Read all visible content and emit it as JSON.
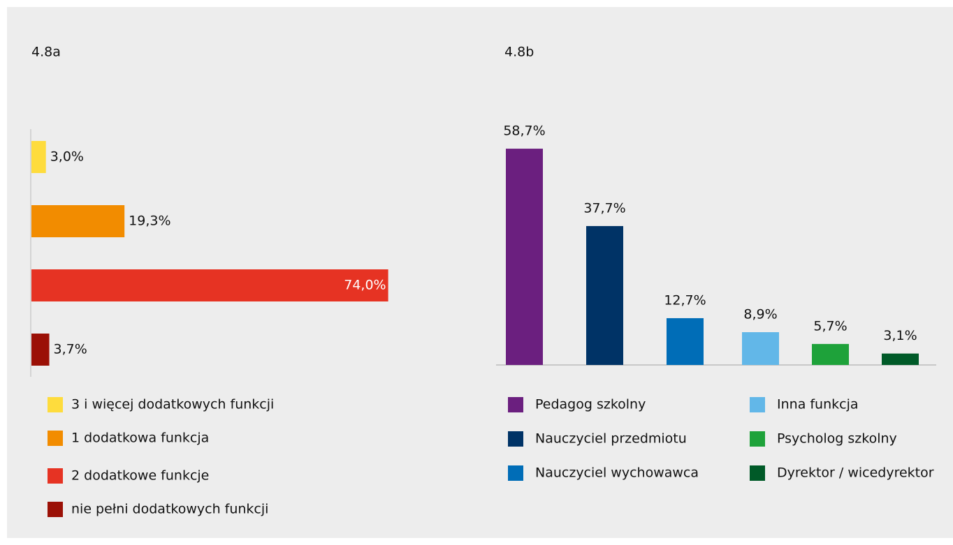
{
  "chart_data": [
    {
      "type": "hbar",
      "title": "4.8a",
      "categories": [
        "3 i więcej dodatkowych funkcji",
        "1 dodatkowa funkcja",
        "2 dodatkowe funkcje",
        "nie pełni dodatkowych funkcji"
      ],
      "values": [
        3.0,
        19.3,
        74.0,
        3.7
      ],
      "value_labels": [
        "3,0%",
        "19,3%",
        "74,0%",
        "3,7%"
      ],
      "colors": [
        "#fedc3d",
        "#f28c00",
        "#e63323",
        "#9b1006"
      ]
    },
    {
      "type": "bar",
      "title": "4.8b",
      "categories": [
        "Pedagog szkolny",
        "Nauczyciel przedmiotu",
        "Nauczyciel wychowawca",
        "Inna funkcja",
        "Psycholog szkolny",
        "Dyrektor / wicedyrektor"
      ],
      "values": [
        58.7,
        37.7,
        12.7,
        8.9,
        5.7,
        3.1
      ],
      "value_labels": [
        "58,7%",
        "37,7%",
        "12,7%",
        "8,9%",
        "5,7%",
        "3,1%"
      ],
      "colors": [
        "#6b1f7f",
        "#003366",
        "#006db7",
        "#62b7e8",
        "#1ea23a",
        "#005a28"
      ]
    }
  ]
}
